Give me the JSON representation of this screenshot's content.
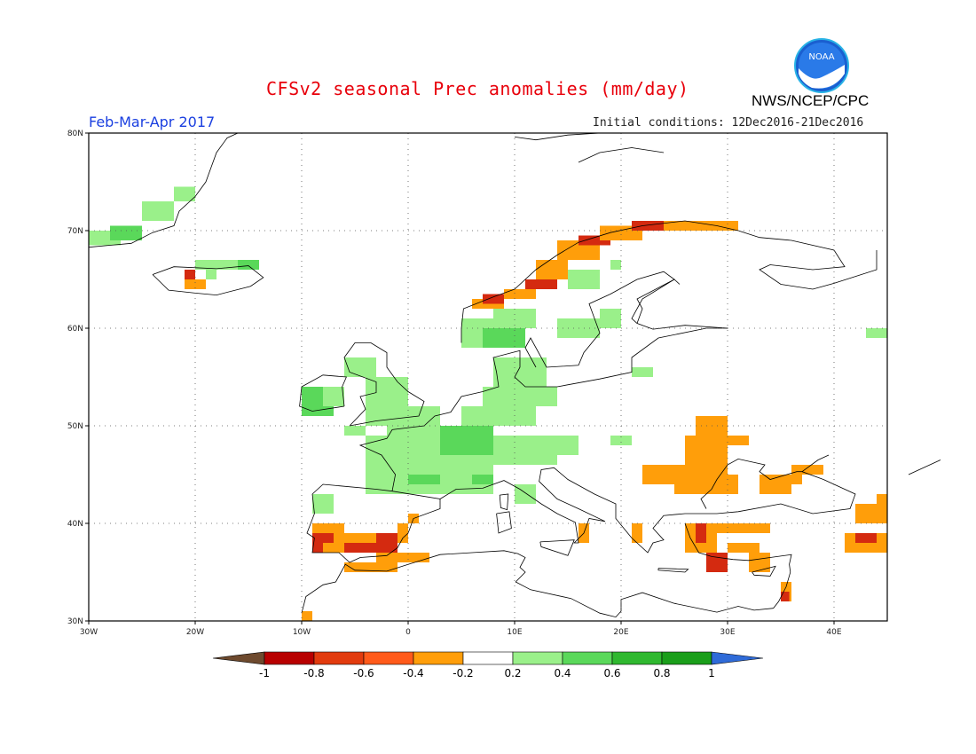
{
  "header": {
    "title": "CFSv2 seasonal Prec anomalies (mm/day)",
    "period": "Feb-Mar-Apr 2017",
    "initial_conditions": "Initial conditions: 12Dec2016-21Dec2016",
    "agency": "NWS/NCEP/CPC",
    "logo_text": "NOAA"
  },
  "map": {
    "lon_range": [
      -30,
      45
    ],
    "lat_range": [
      30,
      80
    ],
    "lon_ticks": [
      "30W",
      "20W",
      "10W",
      "0",
      "10E",
      "20E",
      "30E",
      "40E"
    ],
    "lat_ticks": [
      "80N",
      "70N",
      "60N",
      "50N",
      "40N",
      "30N"
    ],
    "grid": true
  },
  "colorbar": {
    "labels": [
      "-1",
      "-0.8",
      "-0.6",
      "-0.4",
      "-0.2",
      "0.2",
      "0.4",
      "0.6",
      "0.8",
      "1"
    ],
    "colors": [
      "#6e4a2e",
      "#b80000",
      "#e23b0e",
      "#ff5a1a",
      "#ff9e0a",
      "#ffffff",
      "#9af08a",
      "#5ad85a",
      "#2fb82f",
      "#1a9e1a",
      "#2f6bd8"
    ]
  },
  "colors": {
    "dry_strong": "#d42a10",
    "dry": "#ff9e0a",
    "wet": "#9af08a",
    "wet_mid": "#5ad85a",
    "wet_strong": "#2fb82f"
  }
}
